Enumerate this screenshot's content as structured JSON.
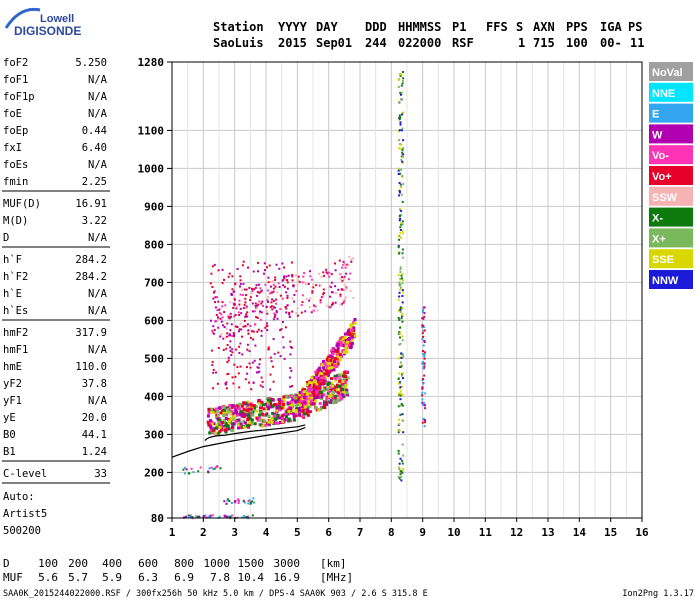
{
  "logo": {
    "line1": "Lowell",
    "line2": "DIGISONDE"
  },
  "header": {
    "row1": [
      "Station",
      "YYYY",
      "DAY",
      "DDD",
      "HHMMSS",
      "P1",
      "FFS",
      "S",
      "AXN",
      "PPS",
      "IGA",
      "PS"
    ],
    "row2": [
      "SaoLuis",
      "2015",
      "Sep01",
      "244",
      "022000",
      "RSF",
      "",
      "1",
      "715",
      "100",
      "00-",
      "11"
    ]
  },
  "params": [
    {
      "label": "foF2",
      "value": "5.250"
    },
    {
      "label": "foF1",
      "value": "N/A"
    },
    {
      "label": "foF1p",
      "value": "N/A"
    },
    {
      "label": "foE",
      "value": "N/A"
    },
    {
      "label": "foEp",
      "value": "0.44"
    },
    {
      "label": "fxI",
      "value": "6.40"
    },
    {
      "label": "foEs",
      "value": "N/A"
    },
    {
      "label": "fmin",
      "value": "2.25"
    },
    {
      "label": "MUF(D)",
      "value": "16.91"
    },
    {
      "label": "M(D)",
      "value": "3.22"
    },
    {
      "label": "D",
      "value": "N/A"
    },
    {
      "label": "h`F",
      "value": "284.2"
    },
    {
      "label": "h`F2",
      "value": "284.2"
    },
    {
      "label": "h`E",
      "value": "N/A"
    },
    {
      "label": "h`Es",
      "value": "N/A"
    },
    {
      "label": "hmF2",
      "value": "317.9"
    },
    {
      "label": "hmF1",
      "value": "N/A"
    },
    {
      "label": "hmE",
      "value": "110.0"
    },
    {
      "label": "yF2",
      "value": "37.8"
    },
    {
      "label": "yF1",
      "value": "N/A"
    },
    {
      "label": "yE",
      "value": "20.0"
    },
    {
      "label": "B0",
      "value": "44.1"
    },
    {
      "label": "B1",
      "value": "1.24"
    },
    {
      "label": "C-level",
      "value": "33"
    }
  ],
  "auto": [
    "Auto:",
    "Artist5",
    "500200"
  ],
  "legend": [
    {
      "label": "NoVal",
      "color": "#a0a0a0"
    },
    {
      "label": "NNE",
      "color": "#00e5ff"
    },
    {
      "label": "E",
      "color": "#33a6f0"
    },
    {
      "label": "W",
      "color": "#b000b0"
    },
    {
      "label": "Vo-",
      "color": "#ff33b5"
    },
    {
      "label": "Vo+",
      "color": "#e8002a"
    },
    {
      "label": "SSW",
      "color": "#f5b3b3"
    },
    {
      "label": "X-",
      "color": "#0c7a0c"
    },
    {
      "label": "X+",
      "color": "#7ab85e"
    },
    {
      "label": "SSE",
      "color": "#d8d800"
    },
    {
      "label": "NNW",
      "color": "#1a1ad8"
    }
  ],
  "dmuf": {
    "d_label": "D",
    "d_values": [
      "100",
      "200",
      "400",
      "600",
      "800",
      "1000",
      "1500",
      "3000"
    ],
    "d_unit": "[km]",
    "muf_label": "MUF",
    "muf_values": [
      "5.6",
      "5.7",
      "5.9",
      "6.3",
      "6.9",
      "7.8",
      "10.4",
      "16.9"
    ],
    "muf_unit": "[MHz]"
  },
  "footer": {
    "left": "SAA0K_2015244022000.RSF / 300fx256h 50 kHz 5.0 km / DPS-4 SAA0K 903 / 2.6 S 315.8 E",
    "right": "Ion2Png 1.3.17"
  },
  "chart_data": {
    "type": "scatter",
    "x_ticks": [
      1,
      2,
      3,
      4,
      5,
      6,
      7,
      8,
      9,
      10,
      11,
      12,
      13,
      14,
      15,
      16
    ],
    "y_ticks": [
      80,
      200,
      300,
      400,
      500,
      600,
      700,
      800,
      900,
      1000,
      1100,
      1280
    ],
    "xlim": [
      1,
      16
    ],
    "ylim": [
      80,
      1280
    ],
    "grid": true,
    "legend_position": "right",
    "trace": {
      "name": "",
      "x": [
        2.05,
        2.1,
        2.2,
        2.4,
        2.7,
        3.0,
        3.5,
        4.0,
        4.5,
        5.0,
        5.25
      ],
      "y": [
        284,
        288,
        292,
        296,
        298,
        302,
        308,
        312,
        316,
        320,
        325
      ]
    },
    "trace2": {
      "name": "",
      "x": [
        1.0,
        1.5,
        2.0,
        3.0,
        4.0,
        5.0,
        5.25
      ],
      "y": [
        240,
        255,
        268,
        284,
        297,
        310,
        318
      ]
    },
    "clusters": [
      {
        "name": "O-trace",
        "x0": 2.1,
        "x1": 6.6,
        "y0": 300,
        "y1": 400,
        "colors": [
          "#e8002a",
          "#ff33b5",
          "#d8d800",
          "#0c7a0c",
          "#7ab85e",
          "#b000b0"
        ]
      },
      {
        "name": "O-ramp",
        "x0": 5.0,
        "x1": 6.8,
        "y0": 380,
        "y1": 590,
        "colors": [
          "#d8d800",
          "#ff33b5",
          "#b000b0",
          "#e8002a"
        ]
      },
      {
        "name": "multi-hop",
        "x0": 2.2,
        "x1": 6.8,
        "y0": 590,
        "y1": 760,
        "colors": [
          "#b000b0",
          "#ff33b5",
          "#e8002a",
          "#f5b3b3"
        ]
      },
      {
        "name": "spread",
        "x0": 2.2,
        "x1": 4.8,
        "y0": 420,
        "y1": 760,
        "colors": [
          "#b000b0",
          "#e8002a"
        ]
      },
      {
        "name": "interference-8.3",
        "x0": 8.2,
        "x1": 8.35,
        "y0": 180,
        "y1": 1260,
        "colors": [
          "#d8d800",
          "#7ab85e",
          "#0c7a0c",
          "#1a1ad8"
        ]
      },
      {
        "name": "interference-9",
        "x0": 8.95,
        "x1": 9.05,
        "y0": 320,
        "y1": 640,
        "colors": [
          "#e8002a",
          "#b000b0",
          "#33a6f0"
        ]
      },
      {
        "name": "low",
        "x0": 1.3,
        "x1": 3.6,
        "y0": 80,
        "y1": 140,
        "colors": [
          "#0c7a0c",
          "#b000b0",
          "#ff33b5",
          "#33a6f0"
        ]
      }
    ]
  }
}
